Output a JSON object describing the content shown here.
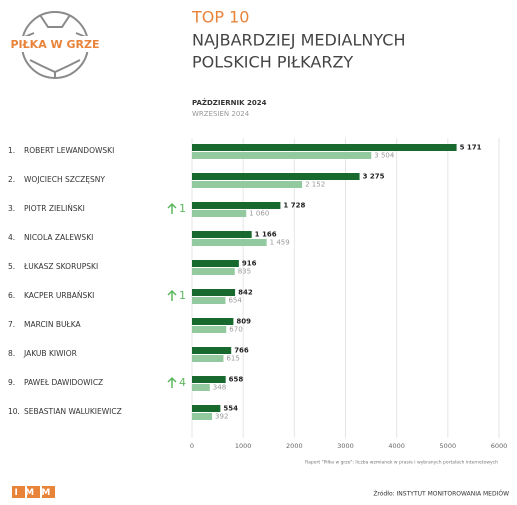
{
  "chart_data": {
    "type": "bar",
    "logo": "PIŁKA W GRZE",
    "title": "TOP 10",
    "subtitle_lines": [
      "NAJBARDZIEJ MEDIALNYCH",
      "POLSKICH PIŁKARZY"
    ],
    "ranks": [
      "1.",
      "2.",
      "3.",
      "4.",
      "5.",
      "6.",
      "7.",
      "8.",
      "9.",
      "10."
    ],
    "categories": [
      "ROBERT LEWANDOWSKI",
      "WOJCIECH SZCZĘSNY",
      "PIOTR ZIELIŃSKI",
      "NICOLA ZALEWSKI",
      "ŁUKASZ SKORUPSKI",
      "KACPER URBAŃSKI",
      "MARCIN BUŁKA",
      "JAKUB KIWIOR",
      "PAWEŁ DAWIDOWICZ",
      "SEBASTIAN WALUKIEWICZ"
    ],
    "rank_changes": [
      null,
      null,
      "1",
      null,
      null,
      "1",
      null,
      null,
      "4",
      null
    ],
    "series": [
      {
        "name": "PAŹDZIERNIK 2024",
        "color": "#17692e",
        "values": [
          5171,
          3275,
          1728,
          1166,
          916,
          842,
          809,
          766,
          658,
          554
        ],
        "value_labels": [
          "5 171",
          "3 275",
          "1 728",
          "1 166",
          "916",
          "842",
          "809",
          "766",
          "658",
          "554"
        ]
      },
      {
        "name": "WRZESIEŃ 2024",
        "color": "#93c99e",
        "values": [
          3504,
          2152,
          1060,
          1459,
          835,
          654,
          670,
          615,
          348,
          392
        ],
        "value_labels": [
          "3 504",
          "2 152",
          "1 060",
          "1 459",
          "835",
          "654",
          "670",
          "615",
          "348",
          "392"
        ]
      }
    ],
    "xlim": [
      0,
      6000
    ],
    "xticks": [
      0,
      1000,
      2000,
      3000,
      4000,
      5000,
      6000
    ],
    "grid": true,
    "footnote": "Raport \"Piłka w grze\": liczba wzmianek w prasie i wybranych portalach internetowych",
    "brand": "IMM",
    "source": "Źródło: INSTYTUT MONITOROWANIA MEDIÓW"
  }
}
